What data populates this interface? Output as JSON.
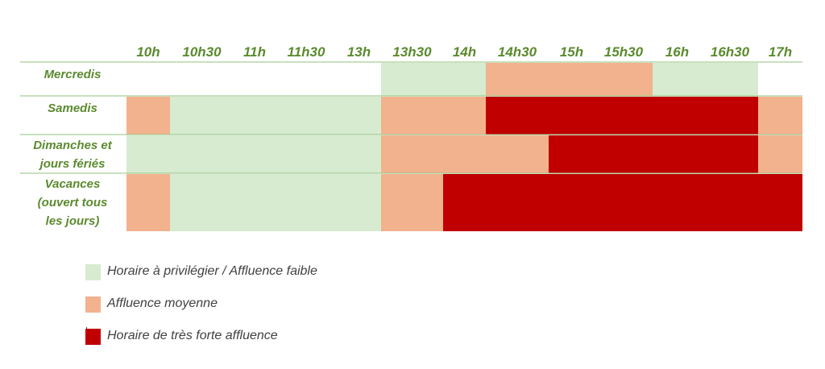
{
  "chart_data": {
    "type": "heatmap",
    "time_labels": [
      "10h",
      "10h30",
      "11h",
      "11h30",
      "13h",
      "13h30",
      "14h",
      "14h30",
      "15h",
      "15h30",
      "16h",
      "16h30",
      "17h"
    ],
    "rows": [
      {
        "label": [
          "Mercredis"
        ],
        "cells": [
          "none",
          "none",
          "none",
          "none",
          "none",
          "low",
          "low",
          "medium",
          "medium",
          "medium",
          "low",
          "low",
          "none"
        ]
      },
      {
        "label": [
          "Samedis"
        ],
        "cells": [
          "medium",
          "low",
          "low",
          "low",
          "low",
          "medium",
          "medium",
          "high",
          "high",
          "high",
          "high",
          "high",
          "medium"
        ]
      },
      {
        "label": [
          "Dimanches et",
          "jours fériés"
        ],
        "cells": [
          "low",
          "low",
          "low",
          "low",
          "low",
          "medium",
          "medium",
          "medium",
          "high",
          "high",
          "high",
          "high",
          "medium"
        ]
      },
      {
        "label": [
          "Vacances",
          "(ouvert tous",
          "les jours)"
        ],
        "cells": [
          "medium",
          "low",
          "low",
          "low",
          "low",
          "medium",
          "high",
          "high",
          "high",
          "high",
          "high",
          "high",
          "high"
        ]
      }
    ],
    "colors": {
      "low": "#d6ebcf",
      "medium": "#f2b28e",
      "high": "#c00000",
      "none": "#ffffff",
      "text": "#5b8a2e",
      "grid": "#92c17c"
    }
  },
  "legend": {
    "items": [
      {
        "level": "low",
        "label": "Horaire à privilégier / Affluence faible"
      },
      {
        "level": "medium",
        "label": "Affluence moyenne"
      },
      {
        "level": "high",
        "label": "Horaire de très forte affluence"
      }
    ]
  }
}
